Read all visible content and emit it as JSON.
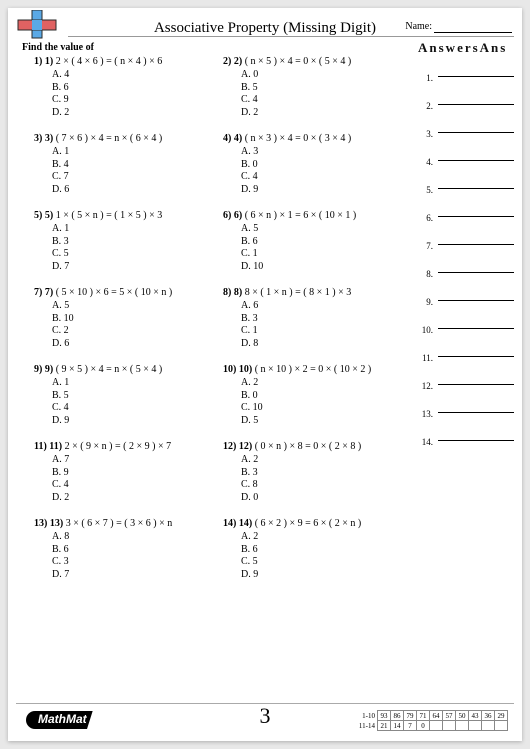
{
  "header": {
    "title": "Associative Property (Missing Digit)",
    "name_label": "Name:",
    "instruction": "Find the value of",
    "answers_header": "AnswersAns"
  },
  "logo": {
    "colors": {
      "v": "#5aa9e6",
      "h": "#e06262",
      "border": "#2a2a2a"
    }
  },
  "questions": [
    {
      "n": "1)",
      "n2": "1)",
      "eq": "2 × ( 4 × 6 ) = ( n × 4 ) × 6",
      "opts": [
        "4",
        "6",
        "9",
        "2"
      ]
    },
    {
      "n": "2)",
      "n2": "2)",
      "eq": "( n × 5 ) × 4 = 0 × ( 5 × 4 )",
      "opts": [
        "0",
        "5",
        "4",
        "2"
      ]
    },
    {
      "n": "3)",
      "n2": "3)",
      "eq": "( 7 × 6 ) × 4 = n × ( 6 × 4 )",
      "opts": [
        "1",
        "4",
        "7",
        "6"
      ]
    },
    {
      "n": "4)",
      "n2": "4)",
      "eq": "( n × 3 ) × 4 = 0 × ( 3 × 4 )",
      "opts": [
        "3",
        "0",
        "4",
        "9"
      ]
    },
    {
      "n": "5)",
      "n2": "5)",
      "eq": "1 × ( 5 × n ) = ( 1 × 5 ) × 3",
      "opts": [
        "1",
        "3",
        "5",
        "7"
      ]
    },
    {
      "n": "6)",
      "n2": "6)",
      "eq": "( 6 × n ) × 1 = 6 × ( 10 × 1 )",
      "opts": [
        "5",
        "6",
        "1",
        "10"
      ]
    },
    {
      "n": "7)",
      "n2": "7)",
      "eq": "( 5 × 10 ) × 6 = 5 × ( 10 × n )",
      "opts": [
        "5",
        "10",
        "2",
        "6"
      ]
    },
    {
      "n": "8)",
      "n2": "8)",
      "eq": "8 × ( 1 × n ) = ( 8 × 1 ) × 3",
      "opts": [
        "6",
        "3",
        "1",
        "8"
      ]
    },
    {
      "n": "9)",
      "n2": "9)",
      "eq": "( 9 × 5 ) × 4 = n × ( 5 × 4 )",
      "opts": [
        "1",
        "5",
        "4",
        "9"
      ]
    },
    {
      "n": "10)",
      "n2": "10)",
      "eq": "( n × 10 ) × 2 = 0 × ( 10 × 2 )",
      "opts": [
        "2",
        "0",
        "10",
        "5"
      ]
    },
    {
      "n": "11)",
      "n2": "11)",
      "eq": "2 × ( 9 × n ) = ( 2 × 9 ) × 7",
      "opts": [
        "7",
        "9",
        "4",
        "2"
      ]
    },
    {
      "n": "12)",
      "n2": "12)",
      "eq": "( 0 × n ) × 8 = 0 × ( 2 × 8 )",
      "opts": [
        "2",
        "3",
        "8",
        "0"
      ]
    },
    {
      "n": "13)",
      "n2": "13)",
      "eq": "3 × ( 6 × 7 ) = ( 3 × 6 ) × n",
      "opts": [
        "8",
        "6",
        "3",
        "7"
      ]
    },
    {
      "n": "14)",
      "n2": "14)",
      "eq": "( 6 × 2 ) × 9 = 6 × ( 2 × n )",
      "opts": [
        "2",
        "6",
        "5",
        "9"
      ]
    }
  ],
  "option_letters": [
    "A.",
    "B.",
    "C.",
    "D."
  ],
  "answers": {
    "count": 14
  },
  "footer": {
    "brand": "MathMat",
    "page_number": "3",
    "score": {
      "row1_label": "1-10",
      "row1": [
        "93",
        "86",
        "79",
        "71",
        "64",
        "57",
        "50",
        "43",
        "36",
        "29"
      ],
      "row2_label": "11-14",
      "row2": [
        "21",
        "14",
        "7",
        "0"
      ]
    }
  }
}
